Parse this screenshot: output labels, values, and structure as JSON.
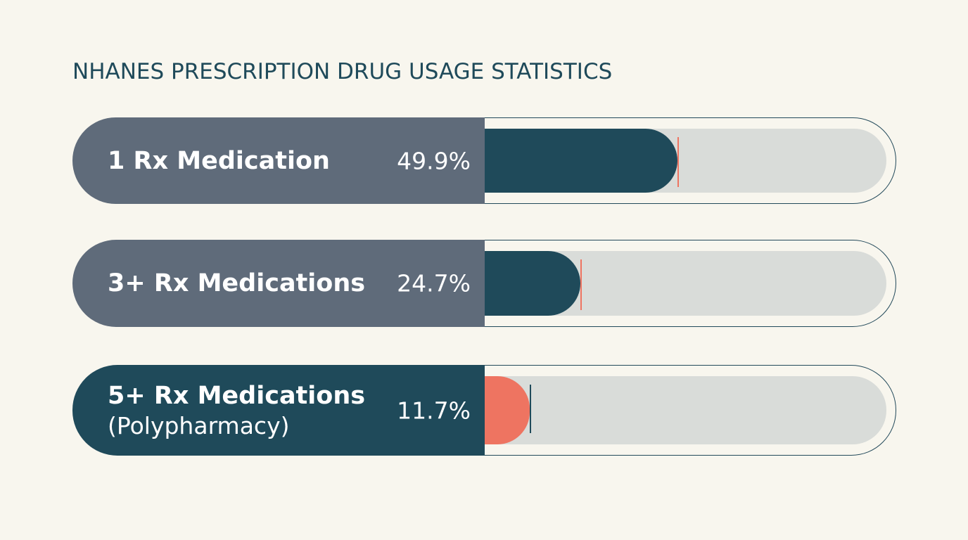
{
  "chart_data": {
    "type": "bar",
    "title": "NHANES PRESCRIPTION DRUG USAGE STATISTICS",
    "unit": "%",
    "categories": [
      {
        "label": "1 Rx Medication",
        "sublabel": "",
        "value": 49.9,
        "value_label": "49.9%"
      },
      {
        "label": "3+ Rx Medications",
        "sublabel": "",
        "value": 24.7,
        "value_label": "24.7%"
      },
      {
        "label": "5+ Rx Medications",
        "sublabel": "(Polypharmacy)",
        "value": 11.7,
        "value_label": "11.7%"
      }
    ],
    "ylim": [
      0,
      100
    ],
    "grid": false,
    "colors": {
      "background": "#f8f6ee",
      "label_panel": "#5f6b7a",
      "highlight_panel": "#1f4a5a",
      "bar_fill": "#1f4a5a",
      "highlight_fill": "#ee7461",
      "track": "#d9dcd9",
      "marker": "#ee7461"
    }
  }
}
